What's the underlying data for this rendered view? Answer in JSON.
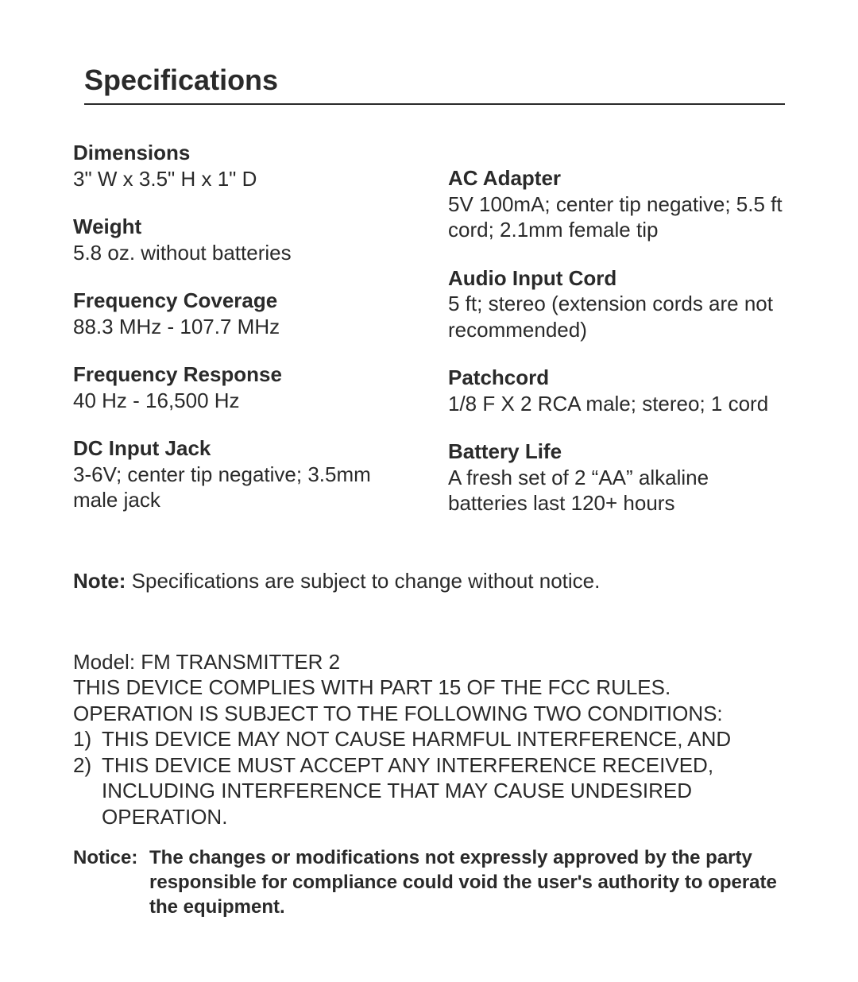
{
  "title": "Specifications",
  "left_specs": [
    {
      "label": "Dimensions",
      "value": "3\" W x 3.5\" H x 1\" D"
    },
    {
      "label": "Weight",
      "value": "5.8 oz. without batteries"
    },
    {
      "label": "Frequency Coverage",
      "value": "88.3 MHz - 107.7 MHz"
    },
    {
      "label": "Frequency Response",
      "value": "40 Hz - 16,500 Hz"
    },
    {
      "label": "DC Input Jack",
      "value": "3-6V; center tip negative; 3.5mm male jack"
    }
  ],
  "right_specs": [
    {
      "label": "AC Adapter",
      "value": "5V 100mA; center tip negative; 5.5 ft cord; 2.1mm female tip"
    },
    {
      "label": "Audio Input Cord",
      "value": "5 ft; stereo (extension cords are not recommended)"
    },
    {
      "label": "Patchcord",
      "value": "1/8 F X 2 RCA male; stereo; 1 cord"
    },
    {
      "label": "Battery Life",
      "value": "A fresh set of 2 “AA” alkaline batteries last 120+ hours"
    }
  ],
  "note_label": "Note:",
  "note_text": " Specifications are subject to change without notice.",
  "fcc": {
    "model_line": "Model:  FM TRANSMITTER 2",
    "line1": "THIS DEVICE COMPLIES WITH PART 15 OF THE FCC RULES.",
    "line2": "OPERATION IS SUBJECT TO THE FOLLOWING TWO CONDITIONS:",
    "items": [
      {
        "num": "1)",
        "text": "THIS DEVICE MAY NOT CAUSE HARMFUL INTERFERENCE, AND"
      },
      {
        "num": "2)",
        "text": "THIS DEVICE MUST ACCEPT ANY INTERFERENCE RECEIVED, INCLUDING INTERFERENCE THAT MAY CAUSE UNDESIRED OPERATION."
      }
    ]
  },
  "notice_label": "Notice:",
  "notice_text": "The changes or modifications not expressly approved by the party responsible for compliance could void the user's authority to operate the equipment.",
  "style": {
    "page_bg": "#ffffff",
    "text_color": "#2a2a2a",
    "title_fontsize": 36,
    "body_fontsize": 26,
    "notice_fontsize": 24,
    "rule_color": "#2a2a2a"
  }
}
